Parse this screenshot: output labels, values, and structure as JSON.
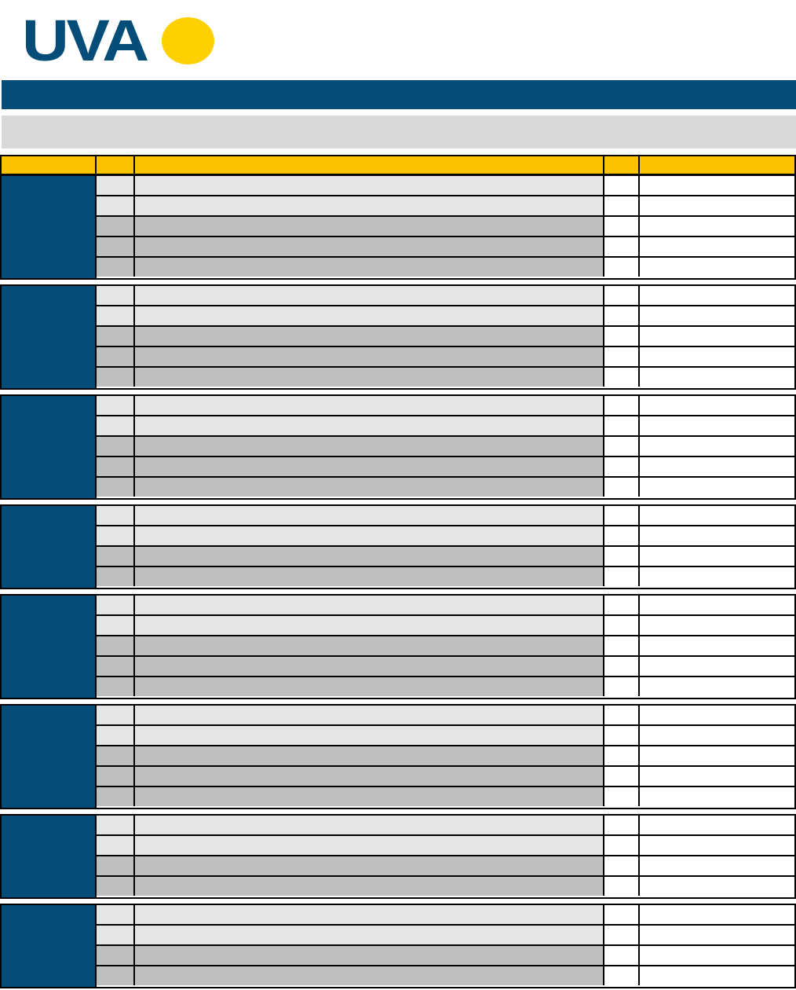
{
  "logo": {
    "text": "UVA",
    "colors": {
      "text": "#044d78",
      "sun": "#ffd000"
    }
  },
  "colors": {
    "navy": "#044d78",
    "header": "#fdc300",
    "light_row": "#e6e6e6",
    "dark_row": "#bfbfbf",
    "subtitle_bar": "#d9d9d9"
  },
  "groups": [
    {
      "rows": [
        "light",
        "light",
        "dark",
        "dark",
        "dark"
      ]
    },
    {
      "rows": [
        "light",
        "light",
        "dark",
        "dark",
        "dark"
      ]
    },
    {
      "rows": [
        "light",
        "light",
        "dark",
        "dark",
        "dark"
      ]
    },
    {
      "rows": [
        "light",
        "light",
        "dark",
        "dark"
      ]
    },
    {
      "rows": [
        "light",
        "light",
        "dark",
        "dark",
        "dark"
      ]
    },
    {
      "rows": [
        "light",
        "light",
        "dark",
        "dark",
        "dark"
      ]
    },
    {
      "rows": [
        "light",
        "light",
        "dark",
        "dark"
      ]
    },
    {
      "rows": [
        "light",
        "light",
        "dark",
        "dark"
      ]
    }
  ]
}
